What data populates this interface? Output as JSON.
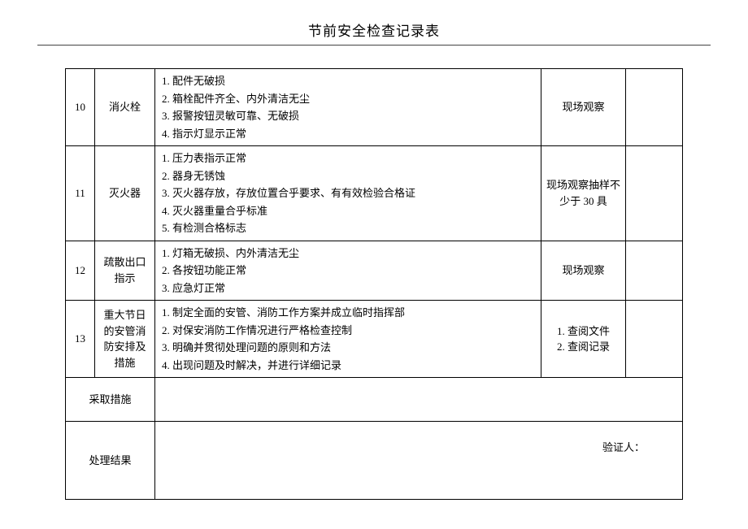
{
  "title": "节前安全检查记录表",
  "rows": [
    {
      "num": "10",
      "item": "消火栓",
      "desc": [
        "1. 配件无破损",
        "2. 箱栓配件齐全、内外清洁无尘",
        "3. 报警按钮灵敏可靠、无破损",
        "4. 指示灯显示正常"
      ],
      "method": "现场观察"
    },
    {
      "num": "11",
      "item": "灭火器",
      "desc": [
        "1. 压力表指示正常",
        "2. 器身无锈蚀",
        "3. 灭火器存放，存放位置合乎要求、有有效检验合格证",
        "4. 灭火器重量合乎标准",
        "5. 有检测合格标志"
      ],
      "method": "现场观察抽样不少于 30 具"
    },
    {
      "num": "12",
      "item": "疏散出口指示",
      "desc": [
        "1. 灯箱无破损、内外清洁无尘",
        "2. 各按钮功能正常",
        "3. 应急灯正常"
      ],
      "method": "现场观察"
    },
    {
      "num": "13",
      "item": "重大节日的安管消防安排及措施",
      "desc": [
        "1. 制定全面的安管、消防工作方案并成立临时指挥部",
        "2. 对保安消防工作情况进行严格检查控制",
        "3. 明确并贯彻处理问题的原则和方法",
        "4. 出现问题及时解决，并进行详细记录"
      ],
      "method": "1. 查阅文件\n2. 查阅记录"
    }
  ],
  "measures_label": "采取措施",
  "result_label": "处理结果",
  "verifier_label": "验证人："
}
